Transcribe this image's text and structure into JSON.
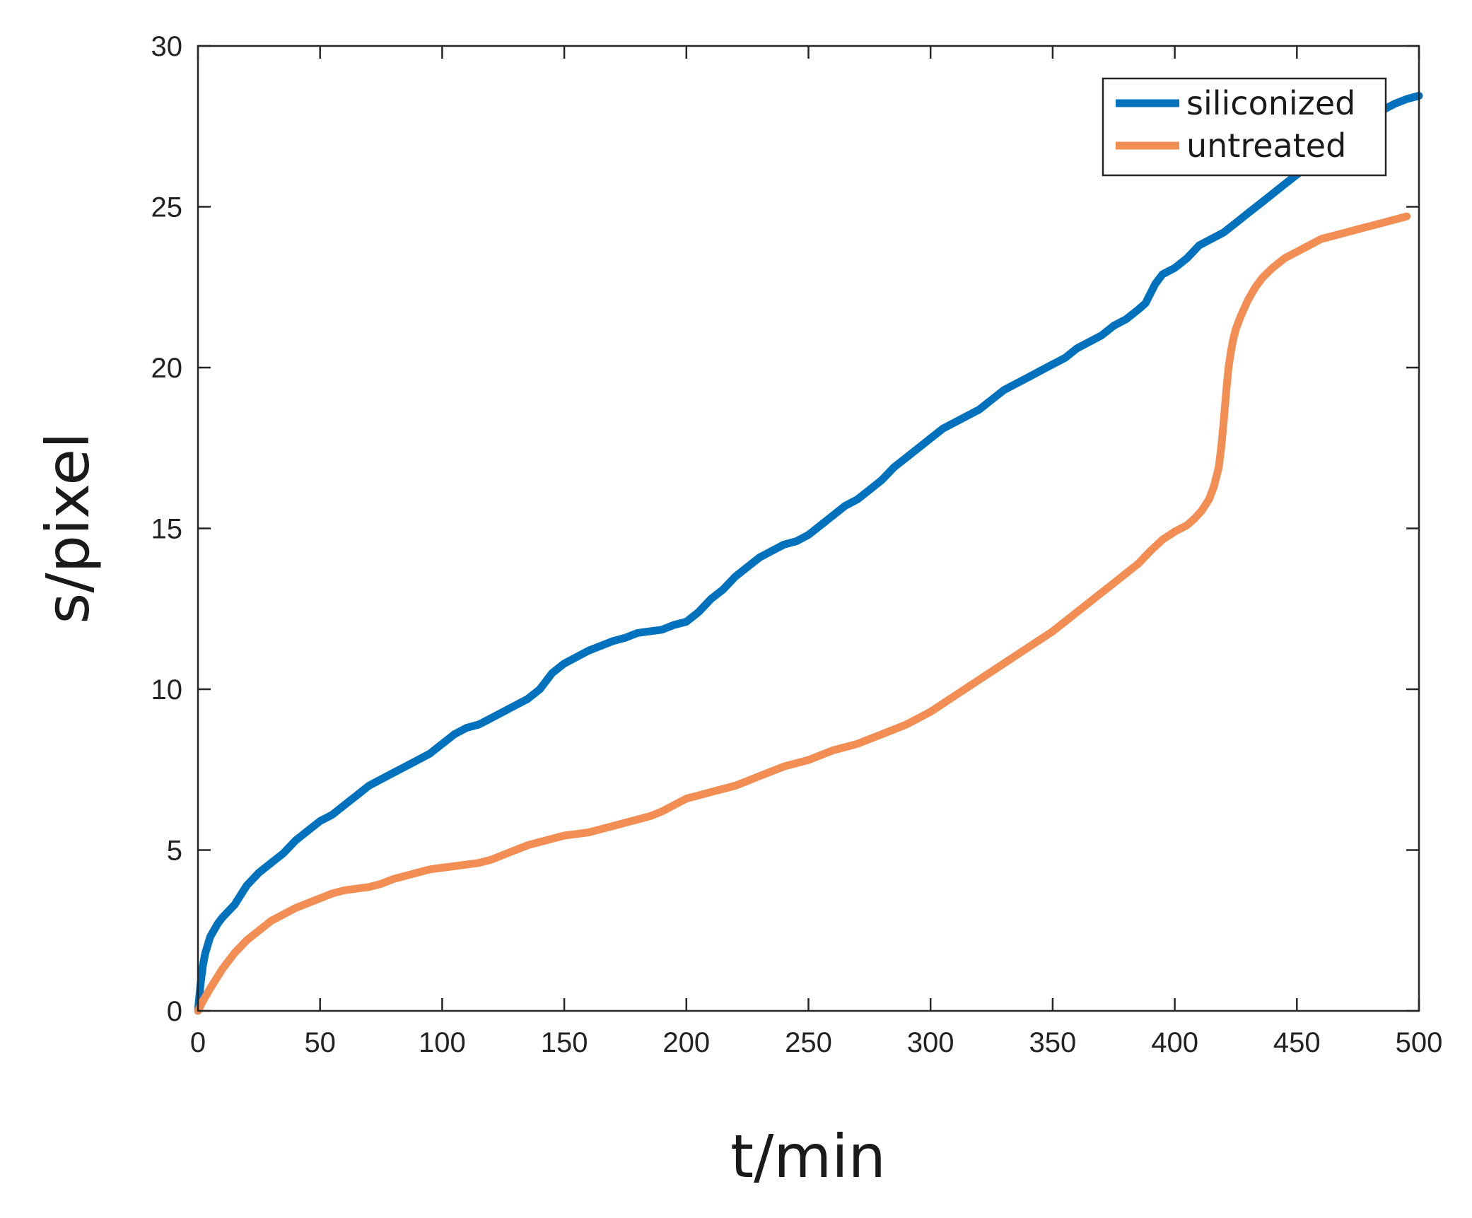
{
  "chart_data": {
    "type": "line",
    "title": "",
    "xlabel": "t/min",
    "ylabel": "s/pixel",
    "xlim": [
      0,
      500
    ],
    "ylim": [
      0,
      30
    ],
    "xticks": [
      "0",
      "50",
      "100",
      "150",
      "200",
      "250",
      "300",
      "350",
      "400",
      "450",
      "500"
    ],
    "yticks": [
      "0",
      "5",
      "10",
      "15",
      "20",
      "25",
      "30"
    ],
    "grid": false,
    "legend_position": "top-right",
    "series": [
      {
        "name": "siliconized",
        "color": "#0072BD",
        "x": [
          0,
          1,
          2,
          3,
          5,
          8,
          10,
          15,
          20,
          25,
          30,
          35,
          40,
          45,
          50,
          55,
          60,
          65,
          70,
          75,
          80,
          85,
          90,
          95,
          100,
          105,
          110,
          115,
          120,
          125,
          130,
          135,
          140,
          145,
          150,
          155,
          160,
          165,
          170,
          175,
          180,
          185,
          190,
          195,
          200,
          205,
          210,
          215,
          220,
          225,
          230,
          235,
          240,
          245,
          250,
          255,
          260,
          265,
          270,
          275,
          280,
          285,
          290,
          295,
          300,
          305,
          310,
          315,
          320,
          325,
          330,
          335,
          340,
          345,
          350,
          355,
          360,
          365,
          370,
          375,
          380,
          385,
          388,
          390,
          392,
          395,
          400,
          405,
          410,
          415,
          420,
          425,
          430,
          435,
          440,
          445,
          450,
          455,
          460,
          465,
          470,
          475,
          480,
          485,
          490,
          495,
          500
        ],
        "y": [
          0,
          0.8,
          1.4,
          1.8,
          2.3,
          2.7,
          2.9,
          3.3,
          3.9,
          4.3,
          4.6,
          4.9,
          5.3,
          5.6,
          5.9,
          6.1,
          6.4,
          6.7,
          7.0,
          7.2,
          7.4,
          7.6,
          7.8,
          8.0,
          8.3,
          8.6,
          8.8,
          8.9,
          9.1,
          9.3,
          9.5,
          9.7,
          10.0,
          10.5,
          10.8,
          11.0,
          11.2,
          11.35,
          11.5,
          11.6,
          11.75,
          11.8,
          11.85,
          12.0,
          12.1,
          12.4,
          12.8,
          13.1,
          13.5,
          13.8,
          14.1,
          14.3,
          14.5,
          14.6,
          14.8,
          15.1,
          15.4,
          15.7,
          15.9,
          16.2,
          16.5,
          16.9,
          17.2,
          17.5,
          17.8,
          18.1,
          18.3,
          18.5,
          18.7,
          19.0,
          19.3,
          19.5,
          19.7,
          19.9,
          20.1,
          20.3,
          20.6,
          20.8,
          21.0,
          21.3,
          21.5,
          21.8,
          22.0,
          22.3,
          22.6,
          22.9,
          23.1,
          23.4,
          23.8,
          24.0,
          24.2,
          24.5,
          24.8,
          25.1,
          25.4,
          25.7,
          26.0,
          26.3,
          26.6,
          26.9,
          27.2,
          27.5,
          27.8,
          28.0,
          28.2,
          28.35,
          28.45
        ]
      },
      {
        "name": "untreated",
        "color": "#F28E54",
        "x": [
          0,
          2,
          5,
          10,
          15,
          20,
          25,
          30,
          35,
          40,
          45,
          50,
          55,
          60,
          65,
          70,
          75,
          80,
          85,
          90,
          95,
          100,
          105,
          110,
          115,
          120,
          125,
          130,
          135,
          140,
          145,
          150,
          155,
          160,
          165,
          170,
          175,
          180,
          185,
          190,
          195,
          200,
          205,
          210,
          215,
          220,
          225,
          230,
          235,
          240,
          245,
          250,
          255,
          260,
          265,
          270,
          275,
          280,
          285,
          290,
          295,
          300,
          305,
          310,
          315,
          320,
          325,
          330,
          335,
          340,
          345,
          350,
          355,
          360,
          365,
          370,
          375,
          380,
          385,
          390,
          395,
          400,
          405,
          408,
          411,
          414,
          416,
          418,
          419,
          420,
          421,
          422,
          423,
          424,
          425,
          427,
          430,
          433,
          436,
          440,
          445,
          450,
          455,
          460,
          465,
          470,
          475,
          480,
          485,
          490,
          495
        ],
        "y": [
          0,
          0.3,
          0.7,
          1.3,
          1.8,
          2.2,
          2.5,
          2.8,
          3.0,
          3.2,
          3.35,
          3.5,
          3.65,
          3.75,
          3.8,
          3.85,
          3.95,
          4.1,
          4.2,
          4.3,
          4.4,
          4.45,
          4.5,
          4.55,
          4.6,
          4.7,
          4.85,
          5.0,
          5.15,
          5.25,
          5.35,
          5.45,
          5.5,
          5.55,
          5.65,
          5.75,
          5.85,
          5.95,
          6.05,
          6.2,
          6.4,
          6.6,
          6.7,
          6.8,
          6.9,
          7.0,
          7.15,
          7.3,
          7.45,
          7.6,
          7.7,
          7.8,
          7.95,
          8.1,
          8.2,
          8.3,
          8.45,
          8.6,
          8.75,
          8.9,
          9.1,
          9.3,
          9.55,
          9.8,
          10.05,
          10.3,
          10.55,
          10.8,
          11.05,
          11.3,
          11.55,
          11.8,
          12.1,
          12.4,
          12.7,
          13.0,
          13.3,
          13.6,
          13.9,
          14.3,
          14.65,
          14.9,
          15.1,
          15.3,
          15.55,
          15.9,
          16.3,
          16.9,
          17.5,
          18.3,
          19.2,
          20.0,
          20.5,
          20.9,
          21.2,
          21.6,
          22.1,
          22.5,
          22.8,
          23.1,
          23.4,
          23.6,
          23.8,
          24.0,
          24.1,
          24.2,
          24.3,
          24.4,
          24.5,
          24.6,
          24.7
        ]
      }
    ]
  }
}
